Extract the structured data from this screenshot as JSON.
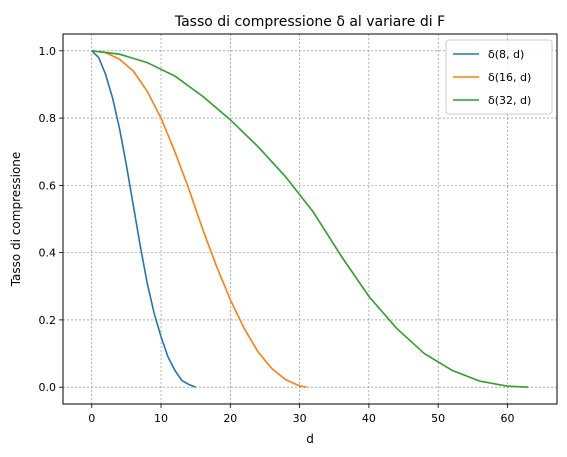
{
  "chart_data": {
    "type": "line",
    "title": "Tasso di compressione δ al variare di F",
    "xlabel": "d",
    "ylabel": "Tasso di compressione",
    "xlim": [
      -4.15,
      67.15
    ],
    "ylim": [
      -0.05,
      1.05
    ],
    "xticks": [
      0,
      10,
      20,
      30,
      40,
      50,
      60
    ],
    "yticks": [
      0.0,
      0.2,
      0.4,
      0.6,
      0.8,
      1.0
    ],
    "xtick_labels": [
      "0",
      "10",
      "20",
      "30",
      "40",
      "50",
      "60"
    ],
    "ytick_labels": [
      "0.0",
      "0.2",
      "0.4",
      "0.6",
      "0.8",
      "1.0"
    ],
    "grid": true,
    "legend_position": "top-right",
    "series": [
      {
        "name": "δ(8, d)",
        "color": "#1f77b4",
        "x": [
          0,
          1,
          2,
          3,
          4,
          5,
          6,
          7,
          8,
          9,
          10,
          11,
          12,
          13,
          14,
          15
        ],
        "y": [
          1.0,
          0.98,
          0.93,
          0.86,
          0.77,
          0.66,
          0.54,
          0.42,
          0.31,
          0.22,
          0.15,
          0.09,
          0.05,
          0.02,
          0.008,
          0.0
        ]
      },
      {
        "name": "δ(16, d)",
        "color": "#ff7f0e",
        "x": [
          0,
          2,
          4,
          6,
          8,
          10,
          12,
          14,
          16,
          18,
          20,
          22,
          24,
          26,
          28,
          30,
          31
        ],
        "y": [
          1.0,
          0.995,
          0.975,
          0.94,
          0.88,
          0.8,
          0.7,
          0.59,
          0.47,
          0.36,
          0.26,
          0.175,
          0.105,
          0.055,
          0.022,
          0.004,
          0.0
        ]
      },
      {
        "name": "δ(32, d)",
        "color": "#2ca02c",
        "x": [
          0,
          4,
          8,
          12,
          16,
          20,
          24,
          28,
          32,
          36,
          40,
          44,
          48,
          52,
          56,
          60,
          63
        ],
        "y": [
          1.0,
          0.99,
          0.965,
          0.925,
          0.865,
          0.795,
          0.715,
          0.625,
          0.52,
          0.39,
          0.27,
          0.175,
          0.1,
          0.05,
          0.018,
          0.003,
          0.0
        ]
      }
    ]
  }
}
